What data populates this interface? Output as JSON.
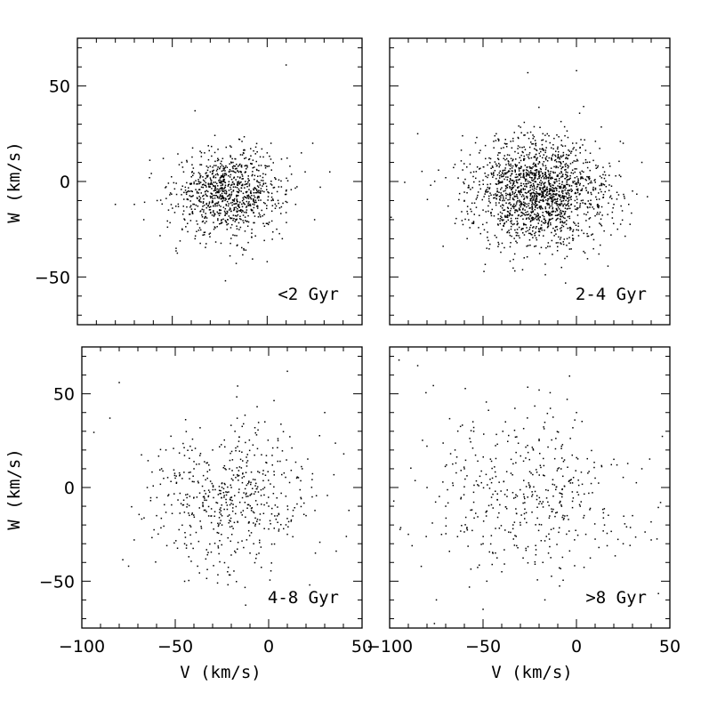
{
  "chart_data": [
    {
      "type": "scatter",
      "panel_label": "<2 Gyr",
      "xlabel": "",
      "ylabel": "W (km/s)",
      "xlim": [
        -100,
        50
      ],
      "ylim": [
        -75,
        75
      ],
      "xticks": [
        -100,
        -50,
        0,
        50
      ],
      "yticks": [
        -50,
        0,
        50
      ],
      "show_xticklabels": false,
      "show_yticklabels": true,
      "legend": "bottom-right",
      "grid": false,
      "n_points": 900,
      "cluster": {
        "mean_v": -20,
        "mean_w": -6,
        "sd_v": 14,
        "sd_w": 11
      },
      "x": [
        -58,
        -40,
        -35,
        -32,
        -30,
        -25,
        -24,
        -22,
        -20,
        -20,
        -18,
        -16,
        -15,
        -12,
        -10,
        -8,
        -5,
        0,
        5,
        10,
        12,
        15,
        20,
        25,
        -45,
        -42,
        -38,
        -28,
        -26,
        -14,
        -6,
        2,
        8,
        -52,
        -62,
        -70,
        -48,
        -33,
        -10,
        4,
        18,
        -18,
        -23,
        -27,
        -12,
        -30,
        -15,
        -5,
        -36,
        -44,
        -2,
        28,
        33,
        -65,
        -80,
        -38,
        24,
        -22,
        10,
        0
      ],
      "y": [
        -10,
        -5,
        3,
        -12,
        8,
        -8,
        -20,
        -2,
        5,
        -15,
        10,
        -10,
        0,
        12,
        -18,
        3,
        -8,
        15,
        -25,
        -5,
        8,
        -12,
        5,
        -20,
        10,
        -22,
        -30,
        -25,
        12,
        14,
        18,
        20,
        -30,
        -15,
        2,
        -12,
        -35,
        15,
        -32,
        2,
        15,
        -28,
        0,
        -6,
        -8,
        5,
        -4,
        -14,
        -10,
        5,
        -22,
        -3,
        5,
        -20,
        -12,
        37,
        20,
        -52,
        61,
        -42
      ]
    },
    {
      "type": "scatter",
      "panel_label": "2-4 Gyr",
      "xlabel": "",
      "ylabel": "",
      "xlim": [
        -100,
        50
      ],
      "ylim": [
        -75,
        75
      ],
      "xticks": [
        -100,
        -50,
        0,
        50
      ],
      "yticks": [
        -50,
        0,
        50
      ],
      "show_xticklabels": false,
      "show_yticklabels": false,
      "legend": "bottom-right",
      "grid": false,
      "n_points": 1700,
      "cluster": {
        "mean_v": -20,
        "mean_w": -6,
        "sd_v": 18,
        "sd_w": 14
      },
      "x": [
        -60,
        -55,
        -50,
        -45,
        -40,
        -35,
        -30,
        -25,
        -20,
        -15,
        -10,
        -5,
        0,
        5,
        10,
        15,
        20,
        25,
        30,
        -65,
        -70,
        -48,
        -38,
        -28,
        -18,
        -8,
        2,
        12,
        22,
        -42,
        -32,
        -22,
        -12,
        -2,
        8,
        18,
        -52,
        28,
        35,
        -78,
        -85,
        38,
        -26,
        0
      ],
      "y": [
        -10,
        5,
        -15,
        8,
        -20,
        12,
        -5,
        15,
        -25,
        0,
        18,
        -30,
        -8,
        10,
        -18,
        5,
        -12,
        20,
        -5,
        -22,
        2,
        -35,
        22,
        -40,
        25,
        -45,
        15,
        -38,
        -25,
        12,
        -15,
        0,
        -8,
        20,
        -28,
        8,
        15,
        -12,
        10,
        -2,
        25,
        -8,
        57,
        58
      ]
    },
    {
      "type": "scatter",
      "panel_label": "4-8 Gyr",
      "xlabel": "V (km/s)",
      "ylabel": "W (km/s)",
      "xlim": [
        -100,
        50
      ],
      "ylim": [
        -75,
        75
      ],
      "xticks": [
        -100,
        -50,
        0,
        50
      ],
      "yticks": [
        -50,
        0,
        50
      ],
      "show_xticklabels": true,
      "show_yticklabels": true,
      "legend": "bottom-right",
      "grid": false,
      "n_points": 520,
      "cluster": {
        "mean_v": -22,
        "mean_w": -6,
        "sd_v": 22,
        "sd_w": 20
      },
      "x": [
        -60,
        -50,
        -45,
        -40,
        -35,
        -30,
        -25,
        -20,
        -15,
        -10,
        -5,
        0,
        5,
        10,
        15,
        20,
        -55,
        -38,
        -28,
        -18,
        -8,
        2,
        12,
        -65,
        -72,
        -42,
        -32,
        -22,
        -12,
        -2,
        8,
        18,
        25,
        -80,
        -75,
        -85,
        22,
        30,
        10,
        15
      ],
      "y": [
        -15,
        5,
        -30,
        10,
        -5,
        20,
        -20,
        0,
        15,
        -35,
        8,
        -10,
        25,
        -25,
        5,
        -15,
        20,
        -42,
        -8,
        30,
        -30,
        12,
        -18,
        0,
        -28,
        22,
        12,
        -45,
        -3,
        35,
        -22,
        10,
        -35,
        56,
        -42,
        37,
        -52,
        40,
        62,
        -60
      ]
    },
    {
      "type": "scatter",
      "panel_label": ">8 Gyr",
      "xlabel": "V (km/s)",
      "ylabel": "",
      "xlim": [
        -100,
        50
      ],
      "ylim": [
        -75,
        75
      ],
      "xticks": [
        -100,
        -50,
        0,
        50
      ],
      "yticks": [
        -50,
        0,
        50
      ],
      "show_xticklabels": true,
      "show_yticklabels": false,
      "legend": "bottom-right",
      "grid": false,
      "n_points": 430,
      "cluster": {
        "mean_v": -25,
        "mean_w": -4,
        "sd_v": 28,
        "sd_w": 22
      },
      "x": [
        -70,
        -60,
        -55,
        -50,
        -45,
        -40,
        -35,
        -30,
        -25,
        -20,
        -15,
        -10,
        -5,
        0,
        5,
        10,
        15,
        20,
        25,
        -65,
        -48,
        -38,
        -28,
        -18,
        -8,
        2,
        12,
        -80,
        -90,
        -95,
        30,
        35,
        45,
        -55,
        -75,
        -50,
        -5,
        -85,
        -20,
        40
      ],
      "y": [
        -10,
        10,
        30,
        -30,
        5,
        -45,
        15,
        -20,
        0,
        25,
        -35,
        10,
        -15,
        40,
        -25,
        5,
        -20,
        15,
        -30,
        20,
        -50,
        35,
        -5,
        -40,
        22,
        -10,
        -32,
        0,
        -25,
        68,
        -15,
        10,
        -8,
        32,
        -60,
        -65,
        47,
        65,
        52,
        -28
      ]
    }
  ]
}
